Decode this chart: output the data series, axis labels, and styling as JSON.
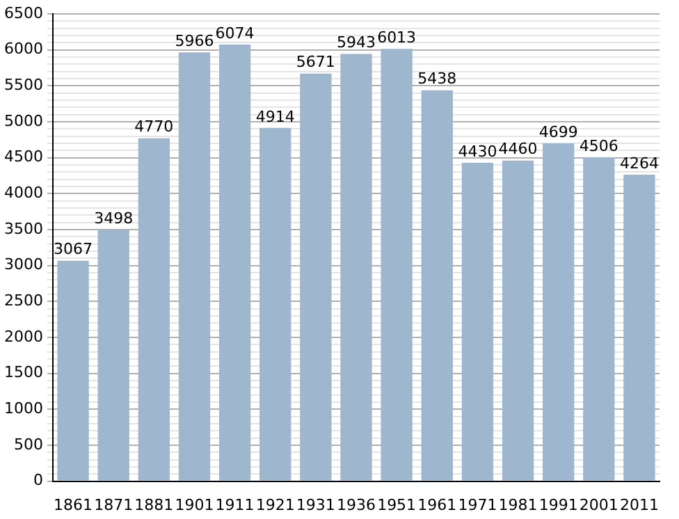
{
  "chart_data": {
    "type": "bar",
    "categories": [
      "1861",
      "1871",
      "1881",
      "1901",
      "1911",
      "1921",
      "1931",
      "1936",
      "1951",
      "1961",
      "1971",
      "1981",
      "1991",
      "2001",
      "2011"
    ],
    "values": [
      3067,
      3498,
      4770,
      5966,
      6074,
      4914,
      5671,
      5943,
      6013,
      5438,
      4430,
      4460,
      4699,
      4506,
      4264
    ],
    "color": "#9fb6cf",
    "data_labels": true,
    "ylim": [
      0,
      6500
    ],
    "yticks": [
      0,
      {
        "value": 100,
        "label": null
      },
      {
        "value": 200,
        "label": null
      },
      {
        "value": 300,
        "label": null
      },
      {
        "value": 400,
        "label": null
      },
      500,
      {
        "value": 600,
        "label": null
      },
      {
        "value": 700,
        "label": null
      },
      {
        "value": 800,
        "label": null
      },
      {
        "value": 900,
        "label": null
      },
      1000,
      {
        "value": 1100,
        "label": null
      },
      {
        "value": 1200,
        "label": null
      },
      {
        "value": 1300,
        "label": null
      },
      {
        "value": 1400,
        "label": null
      },
      1500,
      {
        "value": 1600,
        "label": null
      },
      {
        "value": 1700,
        "label": null
      },
      {
        "value": 1800,
        "label": null
      },
      {
        "value": 1900,
        "label": null
      },
      2000,
      {
        "value": 2100,
        "label": null
      },
      {
        "value": 2200,
        "label": null
      },
      {
        "value": 2300,
        "label": null
      },
      {
        "value": 2400,
        "label": null
      },
      2500,
      {
        "value": 2600,
        "label": null
      },
      {
        "value": 2700,
        "label": null
      },
      {
        "value": 2800,
        "label": null
      },
      {
        "value": 2900,
        "label": null
      },
      3000,
      {
        "value": 3100,
        "label": null
      },
      {
        "value": 3200,
        "label": null
      },
      {
        "value": 3300,
        "label": null
      },
      {
        "value": 3400,
        "label": null
      },
      3500,
      {
        "value": 3600,
        "label": null
      },
      {
        "value": 3700,
        "label": null
      },
      {
        "value": 3800,
        "label": null
      },
      {
        "value": 3900,
        "label": null
      },
      4000,
      {
        "value": 4100,
        "label": null
      },
      {
        "value": 4200,
        "label": null
      },
      {
        "value": 4300,
        "label": null
      },
      {
        "value": 4400,
        "label": null
      },
      4500,
      {
        "value": 4600,
        "label": null
      },
      {
        "value": 4700,
        "label": null
      },
      {
        "value": 4800,
        "label": null
      },
      {
        "value": 4900,
        "label": null
      },
      5000,
      {
        "value": 5100,
        "label": null
      },
      {
        "value": 5200,
        "label": null
      },
      {
        "value": 5300,
        "label": null
      },
      {
        "value": 5400,
        "label": null
      },
      5500,
      {
        "value": 5600,
        "label": null
      },
      {
        "value": 5700,
        "label": null
      },
      {
        "value": 5800,
        "label": null
      },
      {
        "value": 5900,
        "label": null
      },
      6000,
      {
        "value": 6100,
        "label": null
      },
      {
        "value": 6200,
        "label": null
      },
      {
        "value": 6300,
        "label": null
      },
      {
        "value": 6400,
        "label": null
      },
      6500
    ],
    "grid": "y"
  }
}
